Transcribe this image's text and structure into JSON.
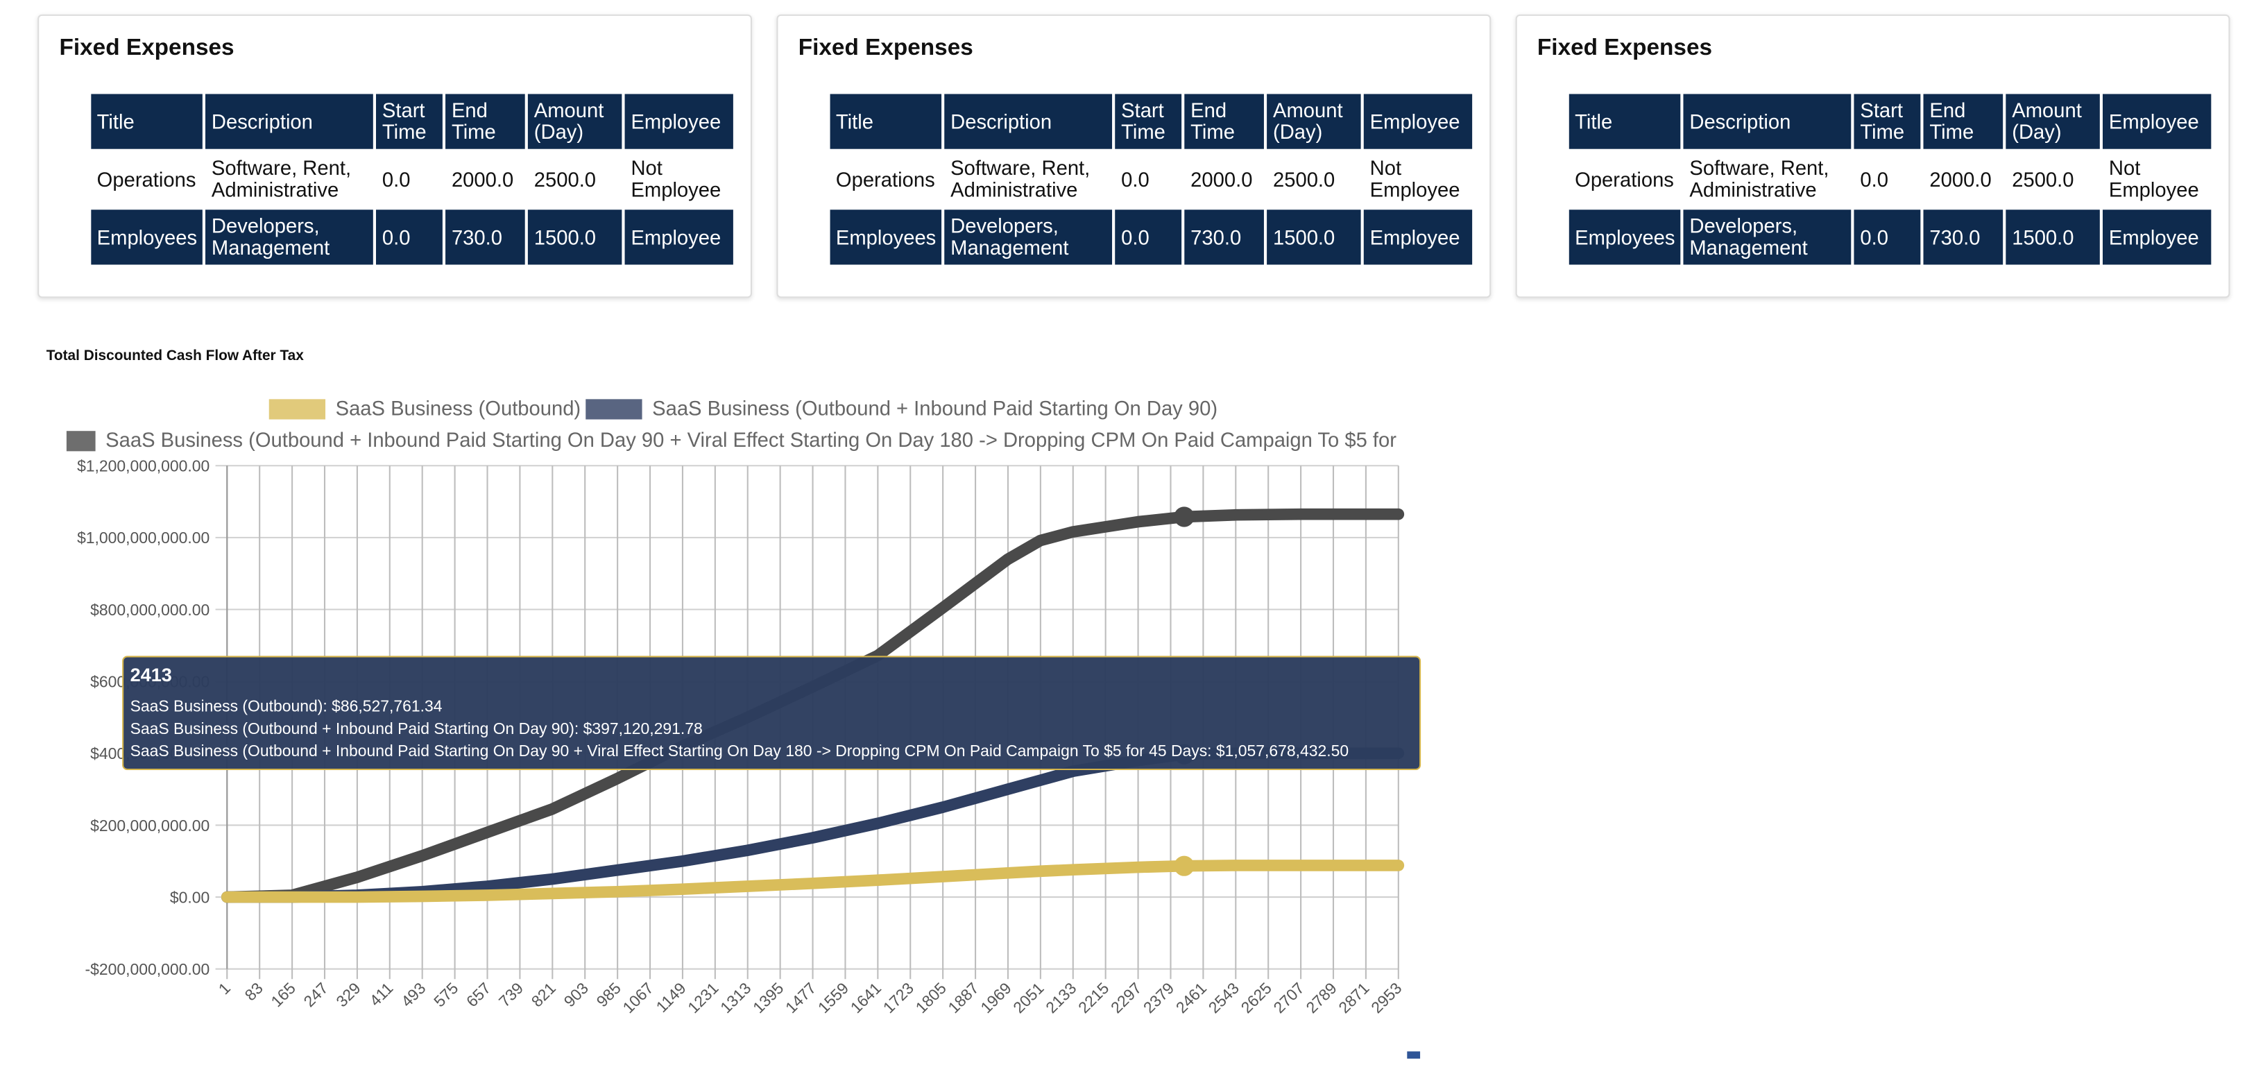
{
  "cards": [
    {
      "title": "Fixed Expenses",
      "table": {
        "header": [
          "Title",
          "Description",
          "Start Time",
          "End Time",
          "Amount (Day)",
          "Employee"
        ],
        "rows": [
          [
            "Operations",
            "Software, Rent, Administrative",
            "0.0",
            "2000.0",
            "2500.0",
            "Not Employee"
          ],
          [
            "Employees",
            "Developers, Management",
            "0.0",
            "730.0",
            "1500.0",
            "Employee"
          ]
        ]
      }
    },
    {
      "title": "Fixed Expenses",
      "table": {
        "header": [
          "Title",
          "Description",
          "Start Time",
          "End Time",
          "Amount (Day)",
          "Employee"
        ],
        "rows": [
          [
            "Operations",
            "Software, Rent, Administrative",
            "0.0",
            "2000.0",
            "2500.0",
            "Not Employee"
          ],
          [
            "Employees",
            "Developers, Management",
            "0.0",
            "730.0",
            "1500.0",
            "Employee"
          ]
        ]
      }
    },
    {
      "title": "Fixed Expenses",
      "table": {
        "header": [
          "Title",
          "Description",
          "Start Time",
          "End Time",
          "Amount (Day)",
          "Employee"
        ],
        "rows": [
          [
            "Operations",
            "Software, Rent, Administrative",
            "0.0",
            "2000.0",
            "2500.0",
            "Not Employee"
          ],
          [
            "Employees",
            "Developers, Management",
            "0.0",
            "730.0",
            "1500.0",
            "Employee"
          ]
        ]
      }
    }
  ],
  "chart_data": {
    "type": "line",
    "title": "Total Discounted Cash Flow After Tax",
    "x": [
      1,
      165,
      329,
      493,
      657,
      821,
      985,
      1149,
      1313,
      1477,
      1641,
      1805,
      1969,
      2051,
      2133,
      2297,
      2413,
      2543,
      2707,
      2953
    ],
    "series": [
      {
        "name": "SaaS Business (Outbound + Inbound Paid Starting On Day 90 + Viral Effect Starting On Day 180 -> Dropping CPM On Paid Campaign To $5 for 45 Days)",
        "color": "#4a4a4a",
        "values": [
          0,
          5000000,
          55000000,
          115000000,
          180000000,
          245000000,
          330000000,
          420000000,
          500000000,
          585000000,
          672000000,
          805000000,
          940000000,
          992000000,
          1016000000,
          1044000000,
          1057678432.5,
          1063000000,
          1065000000,
          1065000000
        ]
      },
      {
        "name": "SaaS Business (Outbound + Inbound Paid Starting On Day 90)",
        "color": "#2f3f62",
        "values": [
          0,
          0,
          5000000,
          15000000,
          30000000,
          50000000,
          75000000,
          100000000,
          130000000,
          165000000,
          205000000,
          250000000,
          300000000,
          325000000,
          350000000,
          380000000,
          397120291.78,
          400000000,
          400000000,
          400000000
        ]
      },
      {
        "name": "SaaS Business (Outbound)",
        "color": "#d9bd5a",
        "values": [
          0,
          0,
          0,
          2000000,
          5000000,
          10000000,
          15000000,
          22000000,
          30000000,
          38000000,
          47000000,
          57000000,
          67000000,
          72000000,
          76000000,
          83000000,
          86527761.34,
          88000000,
          88000000,
          88000000
        ]
      }
    ],
    "xlim": [
      1,
      2953
    ],
    "xticks": [
      1,
      83,
      165,
      247,
      329,
      411,
      493,
      575,
      657,
      739,
      821,
      903,
      985,
      1067,
      1149,
      1231,
      1313,
      1395,
      1477,
      1559,
      1641,
      1723,
      1805,
      1887,
      1969,
      2051,
      2133,
      2215,
      2297,
      2379,
      2461,
      2543,
      2625,
      2707,
      2789,
      2871,
      2953
    ],
    "ylim": [
      -200000000,
      1200000000
    ],
    "yticks": [
      {
        "value": -200000000,
        "label": "-$200,000,000.00"
      },
      {
        "value": 0,
        "label": "$0.00"
      },
      {
        "value": 200000000,
        "label": "$200,000,000.00"
      },
      {
        "value": 400000000,
        "label": "$400,000,000.00"
      },
      {
        "value": 600000000,
        "label": "$600,000,000.00"
      },
      {
        "value": 800000000,
        "label": "$800,000,000.00"
      },
      {
        "value": 1000000000,
        "label": "$1,000,000,000.00"
      },
      {
        "value": 1200000000,
        "label": "$1,200,000,000.00"
      }
    ],
    "grid": true,
    "tooltip": {
      "title": "2413",
      "lines": [
        "SaaS Business (Outbound): $86,527,761.34",
        "SaaS Business (Outbound + Inbound Paid Starting On Day 90): $397,120,291.78",
        "SaaS Business (Outbound + Inbound Paid Starting On Day 90 + Viral Effect Starting On Day 180 -> Dropping CPM On Paid Campaign To $5 for 45 Days: $1,057,678,432.50"
      ]
    }
  }
}
